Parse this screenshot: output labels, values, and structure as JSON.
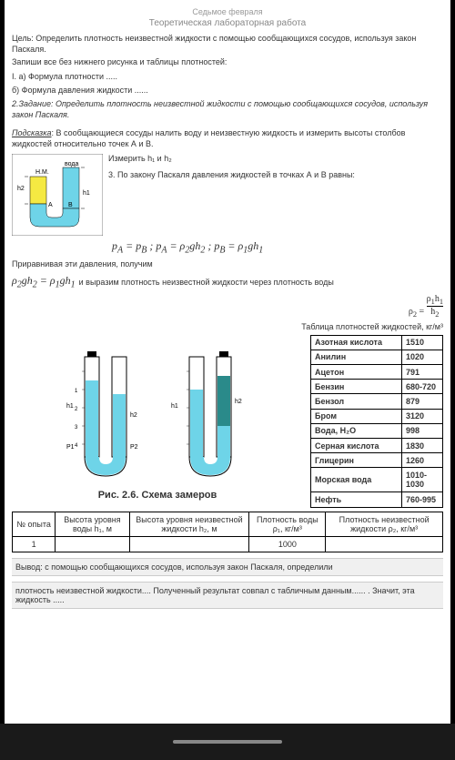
{
  "header": {
    "faded": "Седьмое февраля",
    "sub": "Теоретическая лабораторная работа"
  },
  "goal": "Цель: Определить плотность неизвестной жидкости с помощью сообщающихся сосудов, используя закон Паскаля.",
  "instr": "Запиши все без нижнего рисунка и таблицы плотностей:",
  "i_a": "I. а) Формула плотности .....",
  "i_b": "б) Формула давления жидкости ......",
  "task2": "2.Задание: Определить плотность неизвестной жидкости с помощью сообщающихся сосудов, используя закон Паскаля.",
  "hint_label": "Подсказка",
  "hint": ": В сообщающиеся сосуды налить воду и неизвестную жидкость и измерить высоты столбов жидкостей относительно точек А и В.",
  "step_measure": "Измерить h₁   и      h₂",
  "step3": "3. По закону Паскаля давления жидкостей в точках А и В равны:",
  "formula1": "p_A = p_B ; p_A = ρ₂gh₂ ; p_B = ρ₁gh₁",
  "equating": "Приравнивая эти давления, получим",
  "formula2": "ρ₂gh₂ = ρ₁gh₁",
  "formula2_tail": "  и выразим плотность неизвестной жидкости через плотность воды",
  "formula3": "ρ₂ = ρ₁h₁ / h₂",
  "table_title": "Таблица плотностей     жидкостей, кг/м³",
  "fig_caption": "Рис. 2.6. Схема замеров",
  "density_rows": [
    [
      "Азотная кислота",
      "1510"
    ],
    [
      "Анилин",
      "1020"
    ],
    [
      "Ацетон",
      "791"
    ],
    [
      "Бензин",
      "680-720"
    ],
    [
      "Бензол",
      "879"
    ],
    [
      "Бром",
      "3120"
    ],
    [
      "Вода, H₂O",
      "998"
    ],
    [
      "Серная кислота",
      "1830"
    ],
    [
      "Глицерин",
      "1260"
    ],
    [
      "Морская вода",
      "1010-1030"
    ],
    [
      "Нефть",
      "760-995"
    ]
  ],
  "dt": {
    "h1": "№ опыта",
    "h2": "Высота уровня воды h₁, м",
    "h3": "Высота уровня неизвестной жидкости h₂, м",
    "h4": "Плотность воды ρ₁, кг/м³",
    "h5": "Плотность неизвестной жидкости ρ₂, кг/м³",
    "r1": "1",
    "r4": "1000"
  },
  "conclusion": "Вывод: с помощью сообщающихся сосудов, используя закон Паскаля, определили",
  "conclusion2": "плотность неизвестной жидкости.... Полученный результат совпал с табличным данным...... . Значит, эта жидкость .....",
  "diag": {
    "yellow": "#f5e942",
    "cyan": "#6ed4e8",
    "teal": "#2a8a8a",
    "labels": {
      "nm": "Н.М.",
      "voda": "вода",
      "a": "A",
      "b": "B",
      "h1": "h1",
      "h2": "h2",
      "p1": "P1",
      "p2": "P2"
    }
  }
}
